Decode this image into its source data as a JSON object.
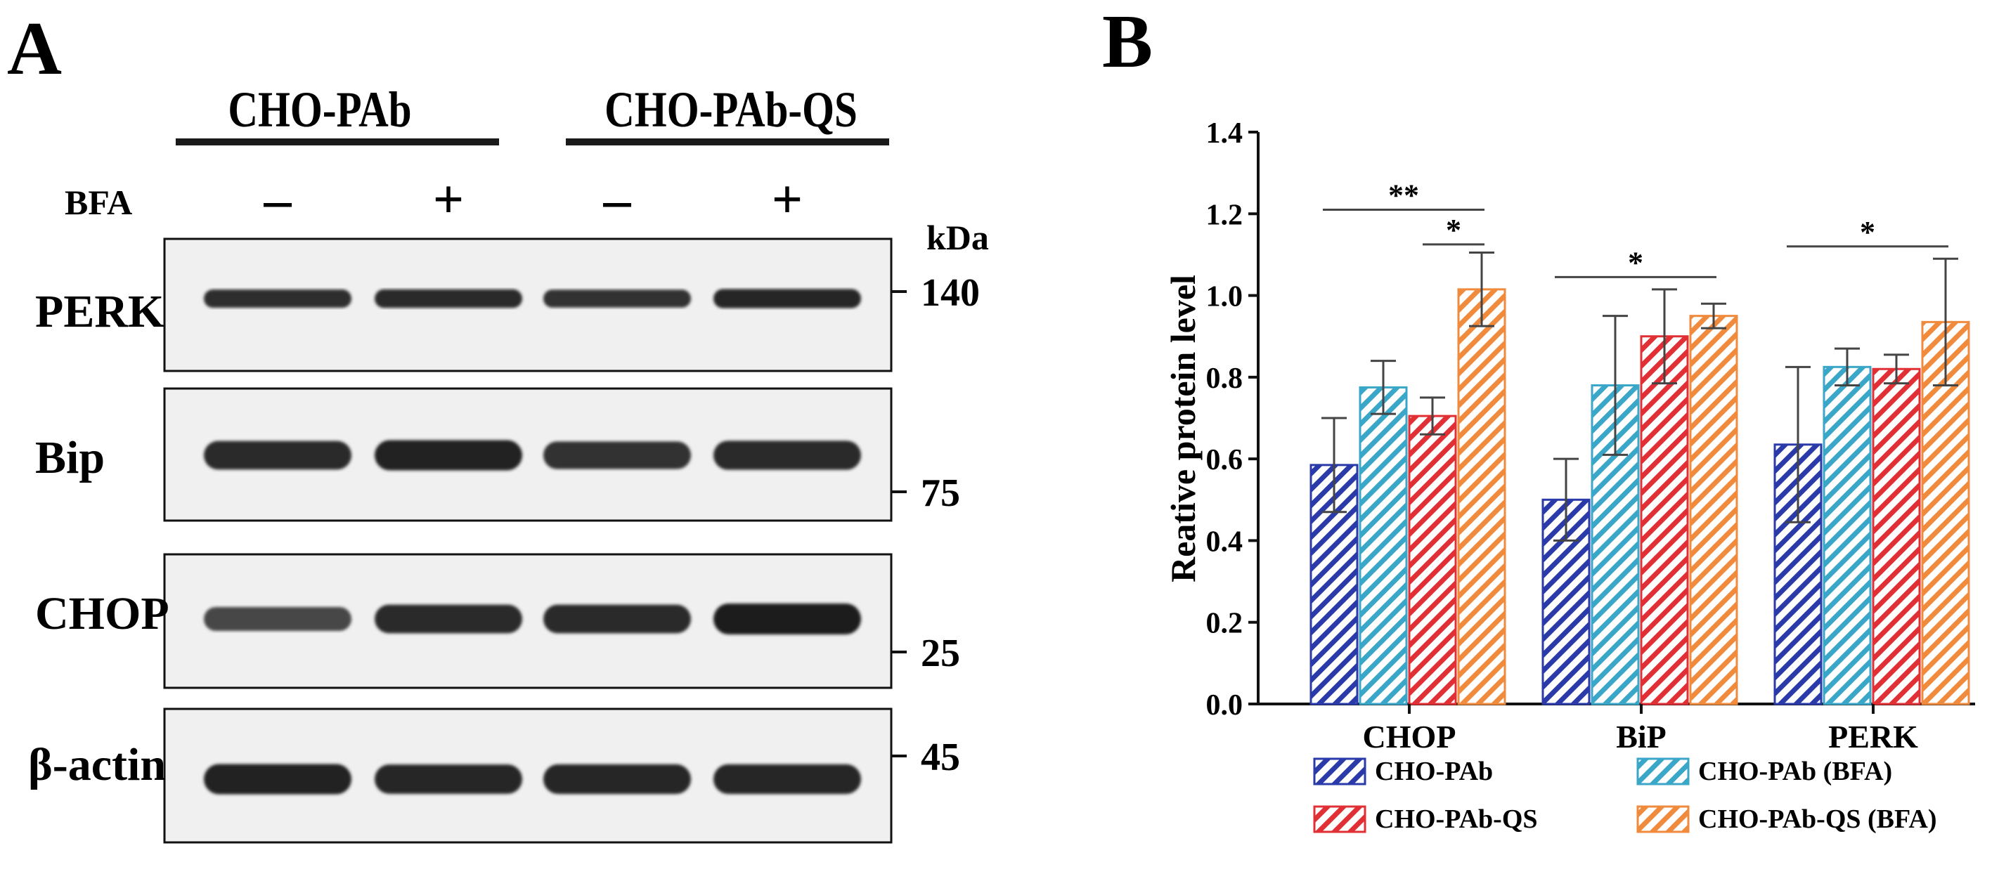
{
  "panel_a": {
    "letter": "A",
    "groups": [
      "CHO-PAb",
      "CHO-PAb-QS"
    ],
    "treatment_label": "BFA",
    "treatment_signs": [
      "–",
      "+",
      "–",
      "+"
    ],
    "kda_label": "kDa",
    "blots": [
      {
        "label": "PERK",
        "bands": [
          0.82,
          0.85,
          0.78,
          0.9
        ],
        "band_style": "thin"
      },
      {
        "label": "Bip",
        "bands": [
          0.85,
          0.95,
          0.78,
          0.88
        ],
        "band_style": "thick"
      },
      {
        "label": "CHOP",
        "bands": [
          0.55,
          0.85,
          0.85,
          1.0
        ],
        "band_style": "thick"
      },
      {
        "label": "β-actin",
        "bands": [
          0.95,
          0.9,
          0.92,
          0.92
        ],
        "band_style": "thick"
      }
    ],
    "markers": [
      "140",
      "75",
      "25",
      "45"
    ]
  },
  "panel_b": {
    "letter": "B",
    "colors": {
      "CHO-PAb": "#2a3aa8",
      "CHO-PAb (BFA)": "#3aa6c8",
      "CHO-PAb-QS": "#e03035",
      "CHO-PAb-QS (BFA)": "#f08a3c"
    }
  },
  "chart_data": {
    "type": "bar",
    "ylabel": "Reative protein level",
    "xlabel": "",
    "title": "",
    "ylim": [
      0,
      1.4
    ],
    "yticks": [
      "0.0",
      "0.2",
      "0.4",
      "0.6",
      "0.8",
      "1.0",
      "1.2",
      "1.4"
    ],
    "categories": [
      "CHOP",
      "BiP",
      "PERK"
    ],
    "series": [
      {
        "name": "CHO-PAb",
        "values": [
          0.585,
          0.5,
          0.635
        ],
        "errors": [
          0.115,
          0.1,
          0.19
        ]
      },
      {
        "name": "CHO-PAb (BFA)",
        "values": [
          0.775,
          0.78,
          0.825
        ],
        "errors": [
          0.065,
          0.17,
          0.045
        ]
      },
      {
        "name": "CHO-PAb-QS",
        "values": [
          0.705,
          0.9,
          0.82
        ],
        "errors": [
          0.045,
          0.115,
          0.035
        ]
      },
      {
        "name": "CHO-PAb-QS (BFA)",
        "values": [
          1.015,
          0.95,
          0.935
        ],
        "errors": [
          0.09,
          0.03,
          0.155
        ]
      }
    ],
    "legend_order": [
      "CHO-PAb",
      "CHO-PAb (BFA)",
      "CHO-PAb-QS",
      "CHO-PAb-QS (BFA)"
    ],
    "legend_placement": "bottom",
    "grid": false,
    "significance": [
      {
        "category": 0,
        "from_series": 0,
        "to_series": 3,
        "y": 1.21,
        "label": "**"
      },
      {
        "category": 0,
        "from_series": 2,
        "to_series": 3,
        "y": 1.125,
        "label": "*"
      },
      {
        "category": 1,
        "from_series": 0,
        "to_series": 3,
        "y": 1.045,
        "label": "*"
      },
      {
        "category": 2,
        "from_series": 0,
        "to_series": 3,
        "y": 1.12,
        "label": "*"
      }
    ]
  }
}
